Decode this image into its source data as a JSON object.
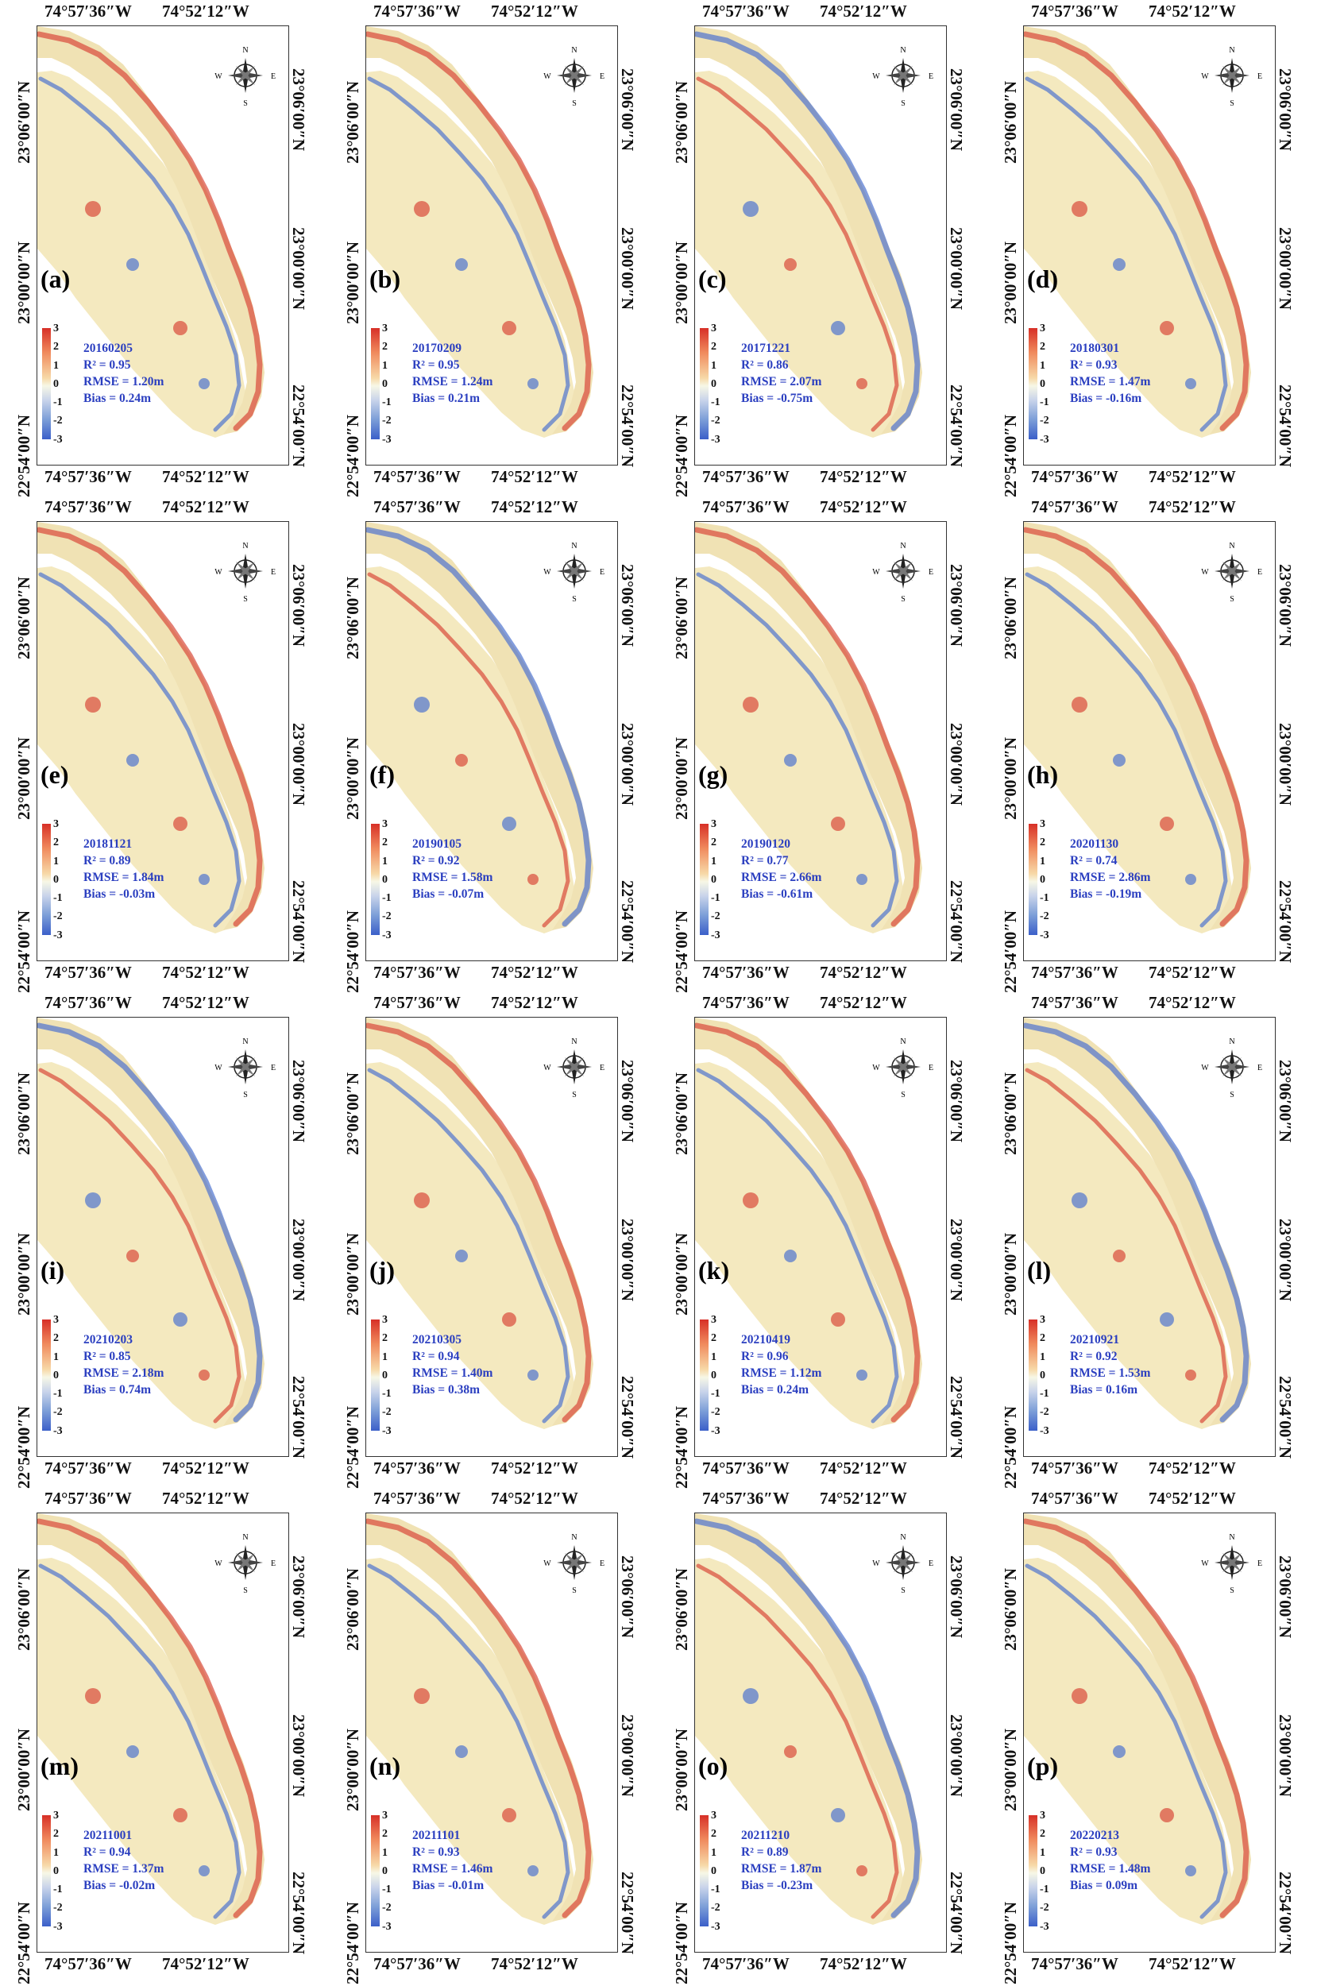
{
  "axis_labels": {
    "lon_left": "74°57′36″W",
    "lon_right": "74°52′12″W",
    "lat_top": "23°06′00″N",
    "lat_mid": "23°00′00″N",
    "lat_bottom": "22°54′00″N"
  },
  "compass": {
    "n": "N",
    "s": "S",
    "e": "E",
    "w": "W"
  },
  "colorbar": {
    "ticks": [
      "3",
      "2",
      "1",
      "0",
      "-1",
      "-2",
      "-3"
    ],
    "colors": [
      "#d73027",
      "#f7f7e6",
      "#3b5fc9"
    ]
  },
  "panels": [
    {
      "label": "(a)",
      "date": "20160205",
      "r2": "R² = 0.95",
      "rmse": "RMSE = 1.20m",
      "bias": "Bias = 0.24m"
    },
    {
      "label": "(b)",
      "date": "20170209",
      "r2": "R² = 0.95",
      "rmse": "RMSE = 1.24m",
      "bias": "Bias = 0.21m"
    },
    {
      "label": "(c)",
      "date": "20171221",
      "r2": "R² = 0.86",
      "rmse": "RMSE = 2.07m",
      "bias": "Bias = -0.75m"
    },
    {
      "label": "(d)",
      "date": "20180301",
      "r2": "R² = 0.93",
      "rmse": "RMSE = 1.47m",
      "bias": "Bias = -0.16m"
    },
    {
      "label": "(e)",
      "date": "20181121",
      "r2": "R² = 0.89",
      "rmse": "RMSE = 1.84m",
      "bias": "Bias = -0.03m"
    },
    {
      "label": "(f)",
      "date": "20190105",
      "r2": "R² = 0.92",
      "rmse": "RMSE = 1.58m",
      "bias": "Bias = -0.07m"
    },
    {
      "label": "(g)",
      "date": "20190120",
      "r2": "R² = 0.77",
      "rmse": "RMSE = 2.66m",
      "bias": "Bias = -0.61m"
    },
    {
      "label": "(h)",
      "date": "20201130",
      "r2": "R² = 0.74",
      "rmse": "RMSE = 2.86m",
      "bias": "Bias = -0.19m"
    },
    {
      "label": "(i)",
      "date": "20210203",
      "r2": "R² = 0.85",
      "rmse": "RMSE = 2.18m",
      "bias": "Bias = 0.74m"
    },
    {
      "label": "(j)",
      "date": "20210305",
      "r2": "R² = 0.94",
      "rmse": "RMSE = 1.40m",
      "bias": "Bias = 0.38m"
    },
    {
      "label": "(k)",
      "date": "20210419",
      "r2": "R² = 0.96",
      "rmse": "RMSE = 1.12m",
      "bias": "Bias = 0.24m"
    },
    {
      "label": "(l)",
      "date": "20210921",
      "r2": "R² = 0.92",
      "rmse": "RMSE = 1.53m",
      "bias": "Bias = 0.16m"
    },
    {
      "label": "(m)",
      "date": "20211001",
      "r2": "R² = 0.94",
      "rmse": "RMSE = 1.37m",
      "bias": "Bias = -0.02m"
    },
    {
      "label": "(n)",
      "date": "20211101",
      "r2": "R² = 0.93",
      "rmse": "RMSE = 1.46m",
      "bias": "Bias = -0.01m"
    },
    {
      "label": "(o)",
      "date": "20211210",
      "r2": "R² = 0.89",
      "rmse": "RMSE = 1.87m",
      "bias": "Bias = -0.23m"
    },
    {
      "label": "(p)",
      "date": "20220213",
      "r2": "R² = 0.93",
      "rmse": "RMSE = 1.48m",
      "bias": "Bias = 0.09m"
    }
  ]
}
